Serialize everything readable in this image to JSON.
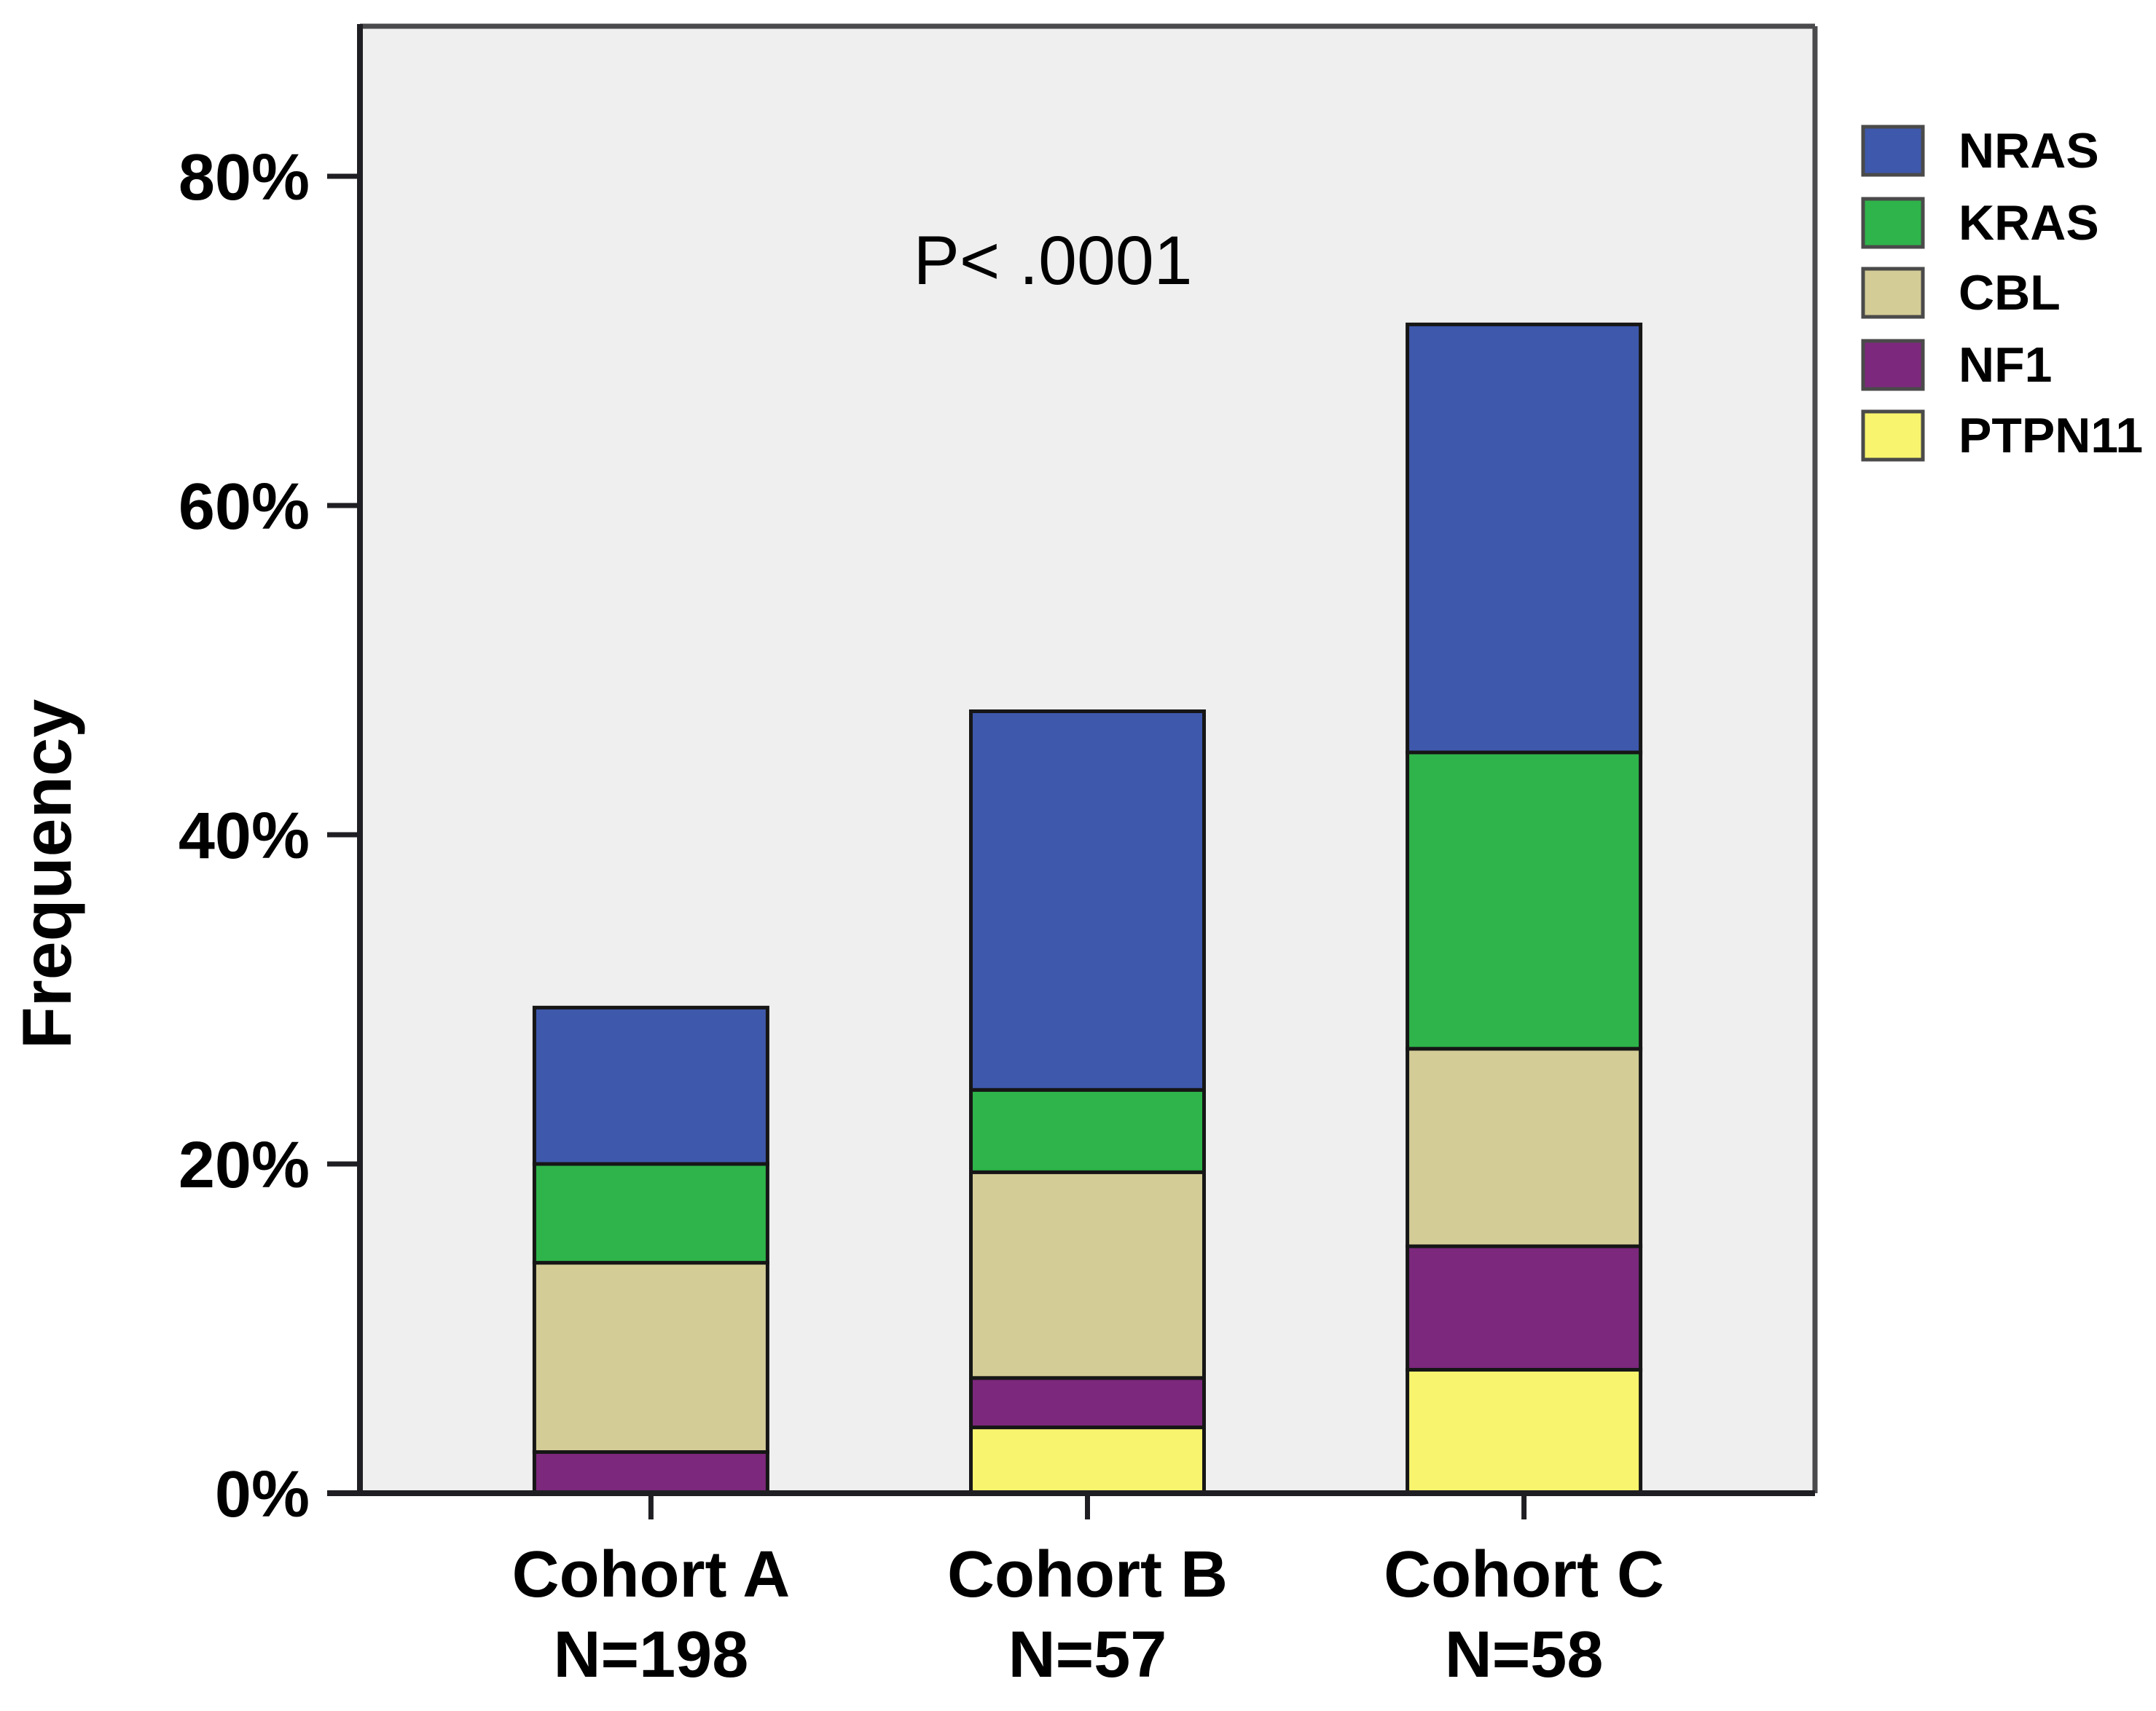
{
  "figure": {
    "y_axis_title": "Frequency",
    "colors": {
      "page_bg": "#FFFFFF",
      "plot_bg": "#EFEFEF",
      "axis": "#1F1F23",
      "frame": "#4A4A4C",
      "bar_border": "#161616",
      "legend_swatch_border": "#4A4A4A",
      "text": "#000000"
    }
  },
  "chart_data": {
    "type": "bar",
    "stacked": true,
    "title": "",
    "ylabel": "Frequency",
    "xlabel": "",
    "annotation": "P< .0001",
    "legend_position": "top-right",
    "grid": false,
    "ylim": [
      0,
      89
    ],
    "y_ticks": [
      "0%",
      "20%",
      "40%",
      "60%",
      "80%"
    ],
    "categories": [
      "Cohort A",
      "Cohort B",
      "Cohort C"
    ],
    "category_sublabels": [
      "N=198",
      "N=57",
      "N=58"
    ],
    "series": [
      {
        "name": "NRAS",
        "color": "#3E58AC",
        "values": [
          9.5,
          23,
          26
        ]
      },
      {
        "name": "KRAS",
        "color": "#2EB44A",
        "values": [
          6,
          5,
          18
        ]
      },
      {
        "name": "CBL",
        "color": "#D3CC96",
        "values": [
          11.5,
          12.5,
          12
        ]
      },
      {
        "name": "NF1",
        "color": "#7C287C",
        "values": [
          2.5,
          3,
          7.5
        ]
      },
      {
        "name": "PTPN11",
        "color": "#F8F46E",
        "values": [
          0,
          4,
          7.5
        ]
      }
    ],
    "totals": [
      29.5,
      47.5,
      71
    ]
  }
}
